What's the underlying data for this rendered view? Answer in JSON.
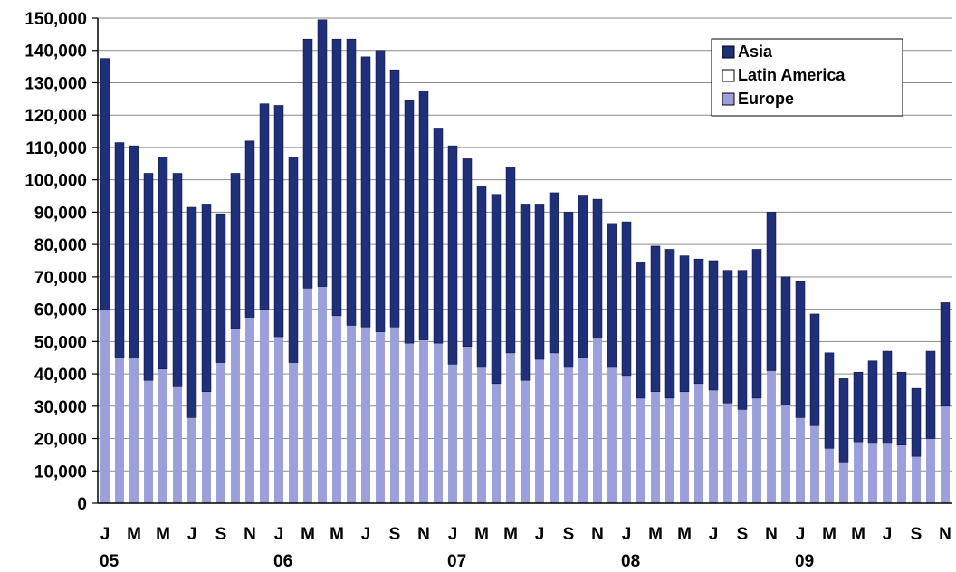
{
  "chart_data": {
    "type": "bar",
    "stacked": true,
    "ylim": [
      0,
      150000
    ],
    "y_ticks": [
      "0",
      "10,000",
      "20,000",
      "30,000",
      "40,000",
      "50,000",
      "60,000",
      "70,000",
      "80,000",
      "90,000",
      "100,000",
      "110,000",
      "120,000",
      "130,000",
      "140,000",
      "150,000"
    ],
    "x_tick_labels": [
      "J",
      "M",
      "M",
      "J",
      "S",
      "N",
      "J",
      "M",
      "M",
      "J",
      "S",
      "N",
      "J",
      "M",
      "M",
      "J",
      "S",
      "N",
      "J",
      "M",
      "M",
      "J",
      "S",
      "N",
      "J",
      "M",
      "M",
      "J",
      "S",
      "N"
    ],
    "year_labels": [
      "05",
      "06",
      "07",
      "08",
      "09"
    ],
    "grid": true,
    "legend_position": "top-right",
    "colors": {
      "Asia": "#1f2f7a",
      "Latin America": "#ffffff",
      "Europe": "#9b9fdc"
    },
    "series": [
      {
        "name": "Europe",
        "values": [
          60000,
          45000,
          45000,
          38000,
          41500,
          36000,
          26500,
          34500,
          43500,
          54000,
          57500,
          60000,
          51500,
          43500,
          66500,
          67000,
          58000,
          55000,
          54500,
          53000,
          54500,
          49500,
          50500,
          49500,
          43000,
          48500,
          42000,
          37000,
          46500,
          38000,
          44500,
          46500,
          42000,
          45000,
          51000,
          42000,
          39500,
          32500,
          34500,
          32500,
          34500,
          37000,
          35000,
          31000,
          29000,
          32500,
          41000,
          30500,
          26500,
          24000,
          17000,
          12500,
          19000,
          18500,
          18500,
          18000,
          14500,
          20000,
          30000
        ]
      },
      {
        "name": "Latin America",
        "values": [
          0,
          0,
          0,
          0,
          0,
          0,
          0,
          0,
          0,
          0,
          0,
          0,
          0,
          0,
          0,
          0,
          0,
          0,
          0,
          0,
          0,
          0,
          0,
          0,
          0,
          0,
          0,
          0,
          0,
          0,
          0,
          0,
          0,
          0,
          0,
          0,
          0,
          0,
          0,
          0,
          0,
          0,
          0,
          0,
          0,
          0,
          0,
          0,
          0,
          0,
          0,
          0,
          0,
          0,
          0,
          0,
          0,
          0,
          0
        ]
      },
      {
        "name": "Asia",
        "values": [
          77500,
          66500,
          65500,
          64000,
          65500,
          66000,
          65000,
          58000,
          46000,
          48000,
          54500,
          63500,
          71500,
          63500,
          77000,
          82500,
          85500,
          88500,
          83500,
          87000,
          79500,
          75000,
          77000,
          66500,
          67500,
          58000,
          56000,
          58500,
          57500,
          54500,
          48000,
          49500,
          48000,
          50000,
          43000,
          44500,
          47500,
          42000,
          45000,
          46000,
          42000,
          38500,
          40000,
          41000,
          43000,
          46000,
          49000,
          39500,
          42000,
          34500,
          29500,
          26000,
          21500,
          25500,
          28500,
          22500,
          21000,
          27000,
          32000
        ]
      }
    ]
  }
}
